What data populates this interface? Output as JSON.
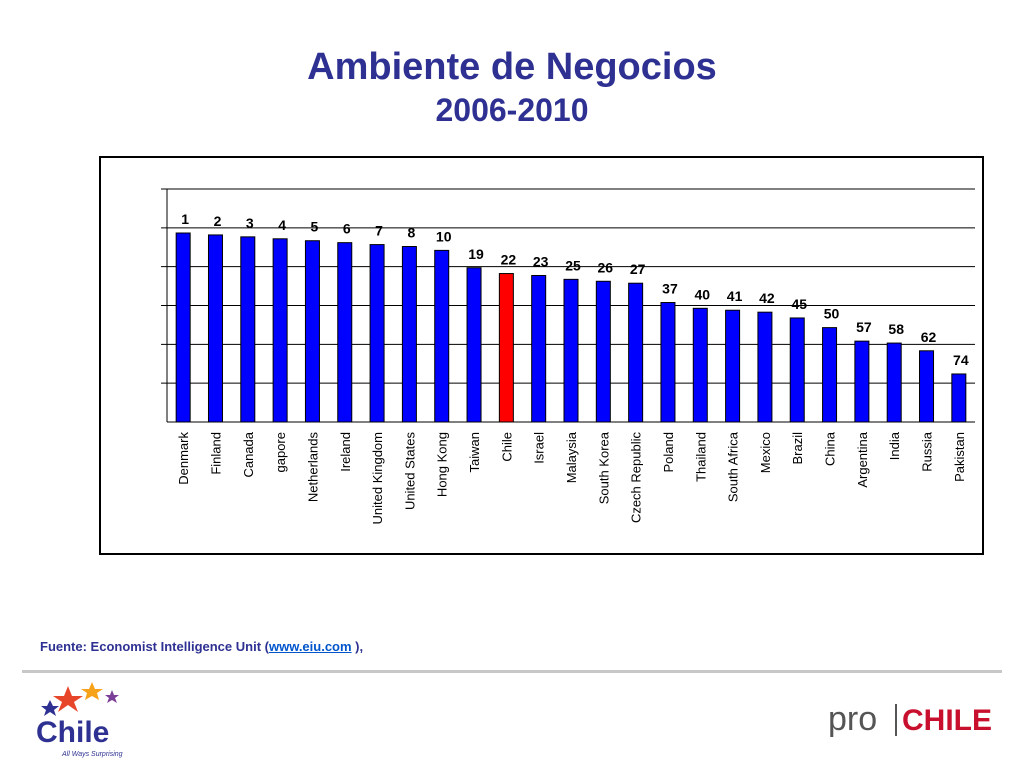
{
  "header": {
    "title": "Ambiente de Negocios",
    "subtitle": "2006-2010"
  },
  "colors": {
    "title": "#2e3192",
    "bar": "#0000ff",
    "highlight_bar": "#ff0000",
    "link": "#0055cc"
  },
  "chart_data": {
    "type": "bar",
    "value_meaning": "ranking shown above each bar (1 = best); bar height decreases as rank increases",
    "categories": [
      "Denmark",
      "Finland",
      "Canada",
      "gapore",
      "Netherlands",
      "Ireland",
      "United Kingdom",
      "United States",
      "Hong Kong",
      "Taiwan",
      "Chile",
      "Israel",
      "Malaysia",
      "South Korea",
      "Czech Republic",
      "Poland",
      "Thailand",
      "South Africa",
      "Mexico",
      "Brazil",
      "China",
      "Argentina",
      "India",
      "Russia",
      "Pakistan"
    ],
    "values": [
      1,
      2,
      3,
      4,
      5,
      6,
      7,
      8,
      10,
      19,
      22,
      23,
      25,
      26,
      27,
      37,
      40,
      41,
      42,
      45,
      50,
      57,
      58,
      62,
      74
    ],
    "highlight": "Chile",
    "ranking_axis_range": [
      1,
      75
    ],
    "gridlines": 6,
    "grid": true,
    "legend": "none",
    "title": "",
    "xlabel": "",
    "ylabel": ""
  },
  "footer": {
    "source_prefix": "Fuente: Economist Intelligence Unit (",
    "source_link": "www.eiu.com",
    "source_suffix": " ),"
  },
  "logos": {
    "chile_word": "Chile",
    "chile_tagline": "All Ways Surprising",
    "prochile_left": "pro",
    "prochile_right": "CHILE"
  }
}
